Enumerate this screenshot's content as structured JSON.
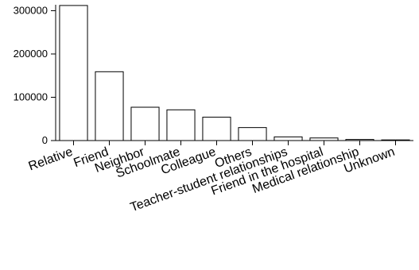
{
  "chart_data": {
    "type": "bar",
    "categories": [
      "Relative",
      "Friend",
      "Neighbor",
      "Schoolmate",
      "Colleague",
      "Others",
      "Teacher-student relationships",
      "Friend in the hospital",
      "Medical relationship",
      "Unknown"
    ],
    "values": [
      312000,
      159000,
      77000,
      71000,
      54000,
      30000,
      8500,
      6000,
      2500,
      1500
    ],
    "ylim": [
      0,
      310000
    ],
    "yticks": [
      0,
      100000,
      200000,
      300000
    ],
    "ytick_labels": [
      "0",
      "100000",
      "200000",
      "300000"
    ],
    "grid": false,
    "legend": "none",
    "colors": {
      "bar_fill": "#ffffff",
      "bar_stroke": "#000000",
      "axis": "#000000",
      "text": "#000000"
    }
  }
}
